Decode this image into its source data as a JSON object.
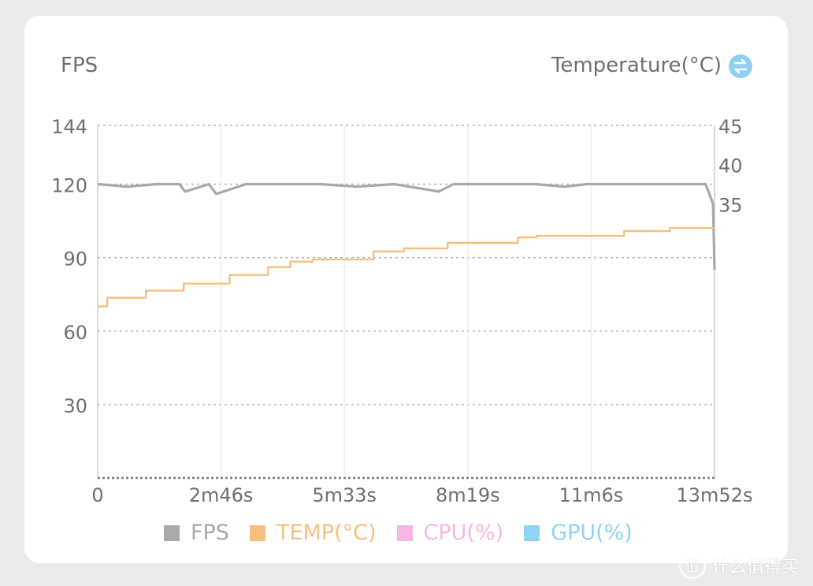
{
  "chart_data": {
    "type": "line",
    "left_axis_title": "FPS",
    "right_axis_title": "Temperature(°C)",
    "x_ticks": [
      "0",
      "2m46s",
      "5m33s",
      "8m19s",
      "11m6s",
      "13m52s"
    ],
    "x_range_seconds": [
      0,
      832
    ],
    "y_left_ticks": [
      144,
      120,
      90,
      60,
      30
    ],
    "y_left_range": [
      0,
      144
    ],
    "y_right_ticks": [
      45,
      40,
      35
    ],
    "y_right_range": [
      0,
      45
    ],
    "grid": true,
    "legend_placement": "bottom",
    "series": [
      {
        "name": "FPS",
        "axis": "left",
        "color": "#a9a9a9",
        "x": [
          0,
          40,
          80,
          110,
          118,
          150,
          160,
          200,
          260,
          300,
          350,
          400,
          460,
          480,
          530,
          590,
          630,
          660,
          710,
          760,
          790,
          820,
          830,
          832
        ],
        "y": [
          120,
          119,
          120,
          120,
          117,
          120,
          116,
          120,
          120,
          120,
          119,
          120,
          117,
          120,
          120,
          120,
          119,
          120,
          120,
          120,
          120,
          120,
          112,
          85
        ]
      },
      {
        "name": "TEMP(°C)",
        "axis": "right",
        "color": "#f6bf7d",
        "x": [
          0,
          13,
          13,
          65,
          65,
          116,
          116,
          178,
          178,
          230,
          230,
          260,
          260,
          290,
          290,
          372,
          372,
          413,
          413,
          472,
          472,
          567,
          567,
          592,
          592,
          710,
          710,
          772,
          772,
          832
        ],
        "y": [
          21.9,
          21.9,
          23.0,
          23.0,
          23.9,
          23.9,
          24.8,
          24.8,
          25.9,
          25.9,
          26.9,
          26.9,
          27.6,
          27.6,
          27.9,
          27.9,
          28.9,
          28.9,
          29.3,
          29.3,
          30.0,
          30.0,
          30.7,
          30.7,
          30.9,
          30.9,
          31.5,
          31.5,
          31.9,
          31.9
        ]
      }
    ]
  },
  "legend": [
    {
      "label": "FPS",
      "color": "#a9a9a9"
    },
    {
      "label": "TEMP(°C)",
      "color": "#f6bf7d"
    },
    {
      "label": "CPU(%)",
      "color": "#f7b6e3"
    },
    {
      "label": "GPU(%)",
      "color": "#8fd3f7"
    }
  ],
  "icons": {
    "swap": "swap-arrows-icon",
    "watermark_logo": "zhi-icon"
  },
  "watermark": {
    "logo_char": "值",
    "text": "什么值得买"
  }
}
